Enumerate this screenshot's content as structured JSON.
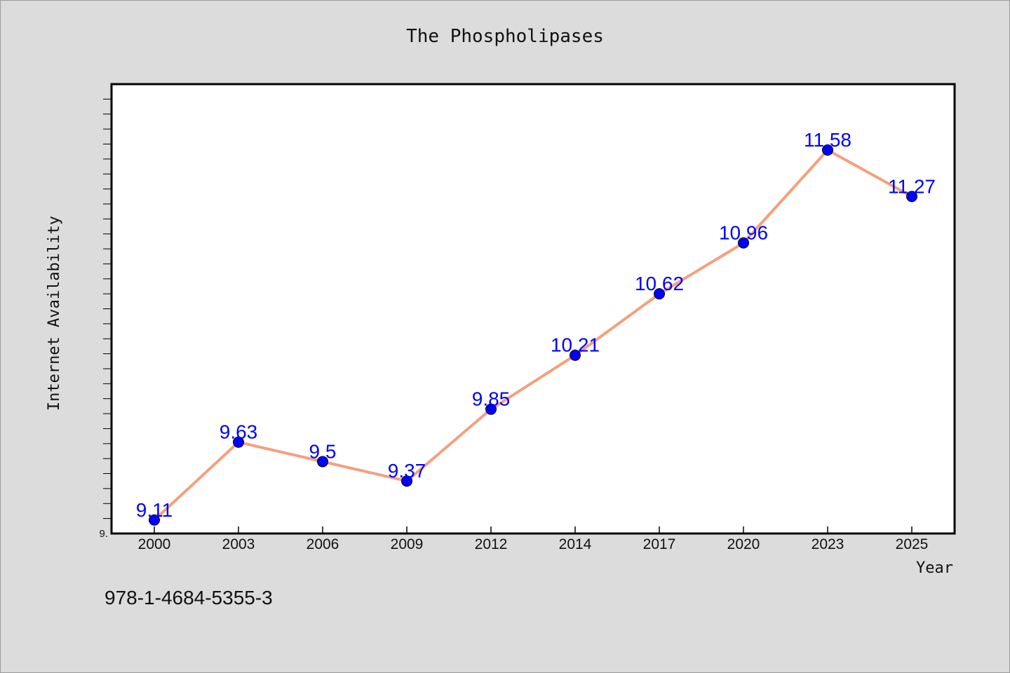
{
  "chart_data": {
    "type": "line",
    "title": "The Phospholipases",
    "xlabel": "Year",
    "ylabel": "Internet Availability",
    "categories": [
      "2000",
      "2003",
      "2006",
      "2009",
      "2012",
      "2014",
      "2017",
      "2020",
      "2023",
      "2025"
    ],
    "series": [
      {
        "values": [
          9.11,
          9.63,
          9.5,
          9.37,
          9.85,
          10.21,
          10.62,
          10.96,
          11.58,
          11.27
        ],
        "labels": [
          "9.11",
          "9.63",
          "9.5",
          "9.37",
          "9.85",
          "10.21",
          "10.62",
          "10.96",
          "11.58",
          "11.27"
        ],
        "line_color": "#f4a07e",
        "marker_color": "#0000ff"
      }
    ],
    "ylim": [
      9.02,
      12.02
    ],
    "y_tick_labels": [
      {
        "value": 9.02,
        "label": "9."
      }
    ],
    "y_minor_tick_step": 0.1,
    "grid": false,
    "legend": "none",
    "plot_background": "#ffffff",
    "page_background": "#dcdcdc"
  },
  "footer": {
    "isbn": "978-1-4684-5355-3"
  }
}
